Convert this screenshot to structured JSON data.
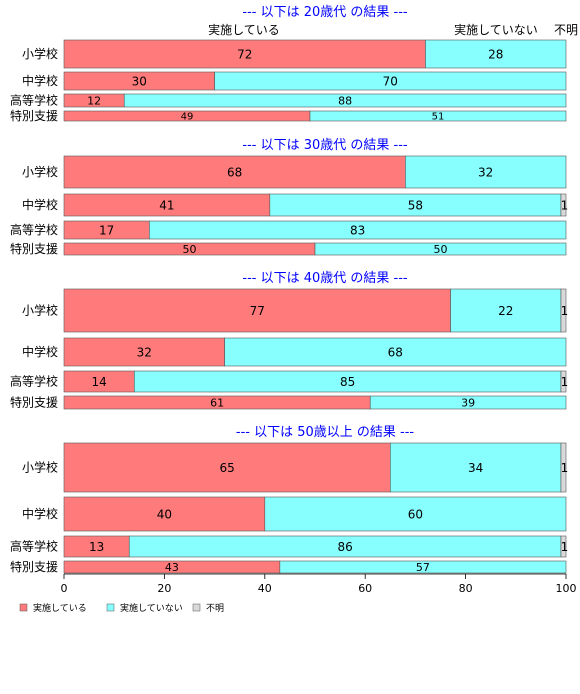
{
  "chart_data": {
    "type": "bar",
    "orientation": "horizontal",
    "stacked": true,
    "xlim": [
      0,
      100
    ],
    "x_ticks": [
      "0",
      "20",
      "40",
      "60",
      "80",
      "100"
    ],
    "categories": [
      "小学校",
      "中学校",
      "高等学校",
      "特別支援"
    ],
    "column_headers": [
      "実施している",
      "実施していない",
      "不明"
    ],
    "colors": {
      "実施している": "#ff7b7b",
      "実施していない": "#88ffff",
      "不明": "#d9d9d9",
      "section_title": "#0000ff"
    },
    "legend": {
      "position": "bottom-left",
      "entries": [
        "実施している",
        "実施していない",
        "不明"
      ]
    },
    "groups": [
      {
        "title": "--- 以下は 20歳代 の結果 ---",
        "rows": [
          {
            "category": "小学校",
            "values": [
              72,
              28,
              0
            ],
            "labels": [
              "72",
              "28",
              ""
            ]
          },
          {
            "category": "中学校",
            "values": [
              30,
              70,
              0
            ],
            "labels": [
              "30",
              "70",
              ""
            ]
          },
          {
            "category": "高等学校",
            "values": [
              12,
              88,
              0
            ],
            "labels": [
              "12",
              "88",
              ""
            ]
          },
          {
            "category": "特別支援",
            "values": [
              49,
              51,
              0
            ],
            "labels": [
              "49",
              "51",
              ""
            ]
          }
        ]
      },
      {
        "title": "--- 以下は 30歳代 の結果 ---",
        "rows": [
          {
            "category": "小学校",
            "values": [
              68,
              32,
              0
            ],
            "labels": [
              "68",
              "32",
              ""
            ]
          },
          {
            "category": "中学校",
            "values": [
              41,
              58,
              1
            ],
            "labels": [
              "41",
              "58",
              "1"
            ]
          },
          {
            "category": "高等学校",
            "values": [
              17,
              83,
              0
            ],
            "labels": [
              "17",
              "83",
              ""
            ]
          },
          {
            "category": "特別支援",
            "values": [
              50,
              50,
              0
            ],
            "labels": [
              "50",
              "50",
              ""
            ]
          }
        ]
      },
      {
        "title": "--- 以下は 40歳代 の結果 ---",
        "rows": [
          {
            "category": "小学校",
            "values": [
              77,
              22,
              1
            ],
            "labels": [
              "77",
              "22",
              "1"
            ]
          },
          {
            "category": "中学校",
            "values": [
              32,
              68,
              0
            ],
            "labels": [
              "32",
              "68",
              ""
            ]
          },
          {
            "category": "高等学校",
            "values": [
              14,
              85,
              1
            ],
            "labels": [
              "14",
              "85",
              "1"
            ]
          },
          {
            "category": "特別支援",
            "values": [
              61,
              39,
              0
            ],
            "labels": [
              "61",
              "39",
              ""
            ]
          }
        ]
      },
      {
        "title": "--- 以下は 50歳以上 の結果 ---",
        "rows": [
          {
            "category": "小学校",
            "values": [
              65,
              34,
              1
            ],
            "labels": [
              "65",
              "34",
              "1"
            ]
          },
          {
            "category": "中学校",
            "values": [
              40,
              60,
              0
            ],
            "labels": [
              "40",
              "60",
              ""
            ]
          },
          {
            "category": "高等学校",
            "values": [
              13,
              86,
              1
            ],
            "labels": [
              "13",
              "86",
              "1"
            ]
          },
          {
            "category": "特別支援",
            "values": [
              43,
              57,
              0
            ],
            "labels": [
              "43",
              "57",
              ""
            ]
          }
        ]
      }
    ]
  }
}
